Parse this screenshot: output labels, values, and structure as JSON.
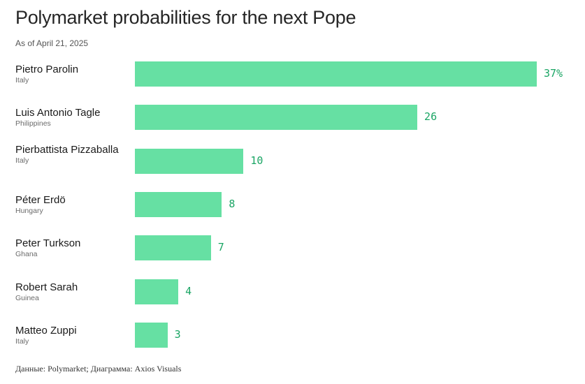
{
  "chart_data": {
    "type": "bar",
    "orientation": "horizontal",
    "title": "Polymarket probabilities for the next Pope",
    "subtitle": "As of April 21, 2025",
    "categories": [
      "Pietro Parolin",
      "Luis Antonio Tagle",
      "Pierbattista Pizzaballa",
      "Péter Erdö",
      "Peter Turkson",
      "Robert Sarah",
      "Matteo Zuppi"
    ],
    "sublabels": [
      "Italy",
      "Philippines",
      "Italy",
      "Hungary",
      "Ghana",
      "Guinea",
      "Italy"
    ],
    "values": [
      37,
      26,
      10,
      8,
      7,
      4,
      3
    ],
    "value_labels": [
      "37%",
      "26",
      "10",
      "8",
      "7",
      "4",
      "3"
    ],
    "xlim": [
      0,
      37
    ],
    "grid": false,
    "legend": "none",
    "bar_color": "#66e0a3",
    "value_color": "#1aa564"
  },
  "source": "Данные: Polymarket; Диаграмма: Axios Visuals"
}
